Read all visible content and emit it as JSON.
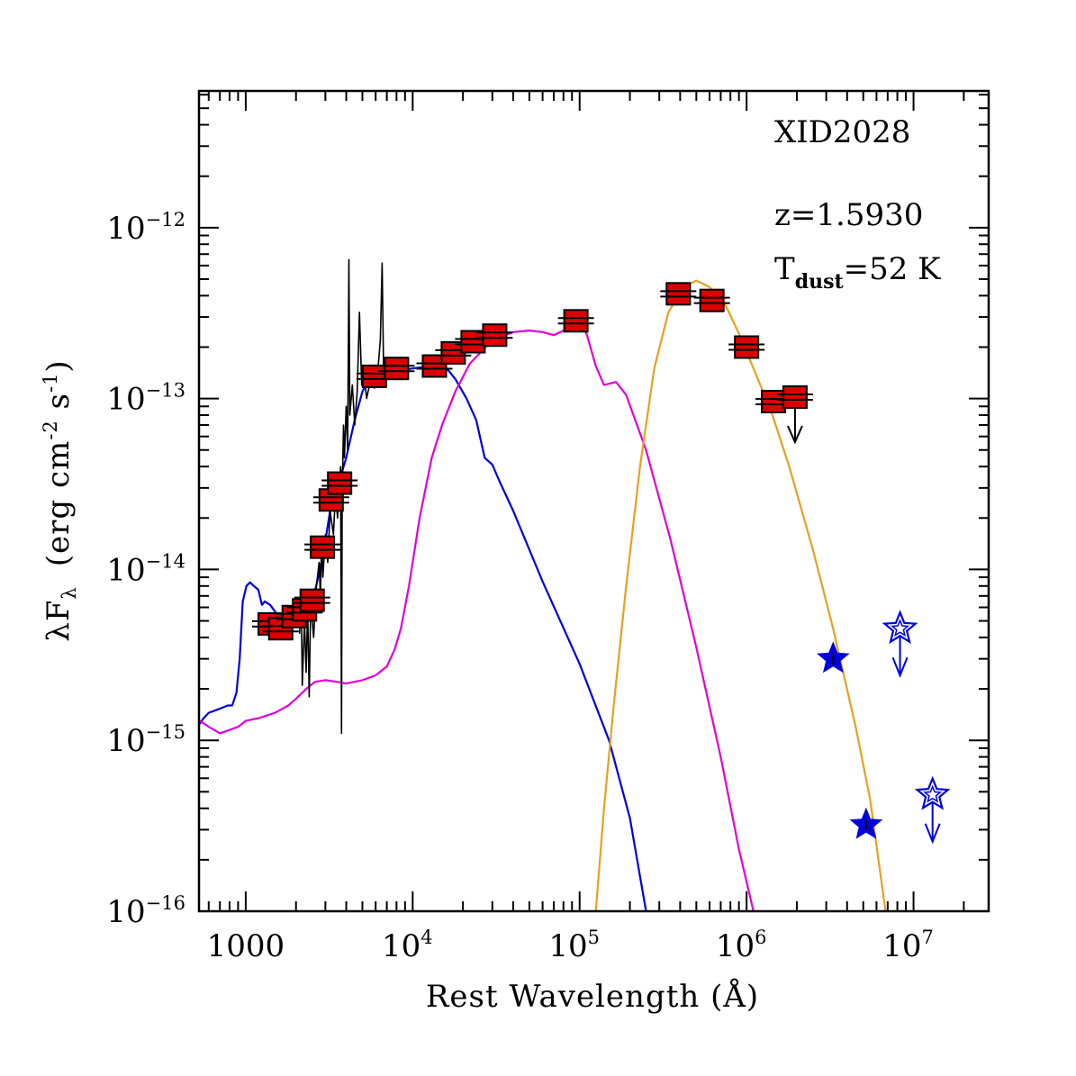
{
  "chart_data": {
    "type": "scatter",
    "title": "",
    "xlabel": "Rest Wavelength (Å)",
    "ylabel_main": "λF",
    "ylabel_sub": "λ",
    "ylabel_units": "(erg cm",
    "ylabel_units_exp1": "-2",
    "ylabel_units_mid": " s",
    "ylabel_units_exp2": "-1",
    "ylabel_units_end": ")",
    "xscale": "log",
    "yscale": "log",
    "xlim_log10": [
      2.72,
      7.45
    ],
    "ylim_log10": [
      -16,
      -11.2
    ],
    "x_ticks": [
      {
        "log": 3,
        "base": "1000",
        "exp": ""
      },
      {
        "log": 4,
        "base": "10",
        "exp": "4"
      },
      {
        "log": 5,
        "base": "10",
        "exp": "5"
      },
      {
        "log": 6,
        "base": "10",
        "exp": "6"
      },
      {
        "log": 7,
        "base": "10",
        "exp": "7"
      }
    ],
    "y_ticks": [
      {
        "log": -12,
        "base": "10",
        "exp": "−12"
      },
      {
        "log": -13,
        "base": "10",
        "exp": "−13"
      },
      {
        "log": -14,
        "base": "10",
        "exp": "−14"
      },
      {
        "log": -15,
        "base": "10",
        "exp": "−15"
      },
      {
        "log": -16,
        "base": "10",
        "exp": "−16"
      }
    ],
    "annotations": {
      "source_id": "XID2028",
      "redshift": "z=1.5930",
      "tdust_prefix": "T",
      "tdust_sub": "dust",
      "tdust_value": "=52 K"
    },
    "colors": {
      "stellar": "#0000dd",
      "torus": "#dd00dd",
      "dust": "#e8a020",
      "spectrum": "#000000",
      "photometry_fill": "#dd0000",
      "radio": "#0000dd"
    },
    "series": [
      {
        "name": "photometry",
        "marker": "square",
        "points": [
          {
            "x": 1400,
            "y": 4.8e-15,
            "upper_limit": false
          },
          {
            "x": 1620,
            "y": 4.5e-15,
            "upper_limit": false
          },
          {
            "x": 1950,
            "y": 5.3e-15,
            "upper_limit": false
          },
          {
            "x": 2250,
            "y": 5.8e-15,
            "upper_limit": false
          },
          {
            "x": 2500,
            "y": 6.6e-15,
            "upper_limit": false
          },
          {
            "x": 2880,
            "y": 1.35e-14,
            "upper_limit": false
          },
          {
            "x": 3250,
            "y": 2.55e-14,
            "upper_limit": false
          },
          {
            "x": 3650,
            "y": 3.2e-14,
            "upper_limit": false
          },
          {
            "x": 5900,
            "y": 1.35e-13,
            "upper_limit": false
          },
          {
            "x": 8000,
            "y": 1.5e-13,
            "upper_limit": false
          },
          {
            "x": 13500,
            "y": 1.55e-13,
            "upper_limit": false
          },
          {
            "x": 17500,
            "y": 1.85e-13,
            "upper_limit": false
          },
          {
            "x": 23000,
            "y": 2.15e-13,
            "upper_limit": false
          },
          {
            "x": 31000,
            "y": 2.35e-13,
            "upper_limit": false
          },
          {
            "x": 95000,
            "y": 2.85e-13,
            "upper_limit": false
          },
          {
            "x": 390000,
            "y": 4.1e-13,
            "upper_limit": false
          },
          {
            "x": 620000,
            "y": 3.75e-13,
            "upper_limit": false
          },
          {
            "x": 1000000,
            "y": 2e-13,
            "upper_limit": false
          },
          {
            "x": 1450000,
            "y": 9.6e-14,
            "upper_limit": false
          },
          {
            "x": 1950000,
            "y": 1.02e-13,
            "upper_limit": true
          }
        ]
      },
      {
        "name": "radio",
        "marker": "star",
        "points": [
          {
            "x": 3300000,
            "y": 3e-15,
            "upper_limit": false
          },
          {
            "x": 5200000,
            "y": 3.2e-16,
            "upper_limit": false
          },
          {
            "x": 8300000,
            "y": 4.5e-15,
            "upper_limit": true
          },
          {
            "x": 13000000,
            "y": 4.8e-16,
            "upper_limit": true
          }
        ]
      },
      {
        "name": "stellar template",
        "line": true,
        "points": [
          [
            530,
            1.25e-15
          ],
          [
            560,
            1.35e-15
          ],
          [
            600,
            1.45e-15
          ],
          [
            660,
            1.5e-15
          ],
          [
            720,
            1.55e-15
          ],
          [
            780,
            1.6e-15
          ],
          [
            830,
            1.6e-15
          ],
          [
            880,
            1.9e-15
          ],
          [
            920,
            3e-15
          ],
          [
            960,
            6.5e-15
          ],
          [
            1010,
            8e-15
          ],
          [
            1060,
            8.4e-15
          ],
          [
            1120,
            8e-15
          ],
          [
            1190,
            7.6e-15
          ],
          [
            1250,
            6.2e-15
          ],
          [
            1300,
            6.5e-15
          ],
          [
            1400,
            6.2e-15
          ],
          [
            1600,
            5.2e-15
          ],
          [
            1800,
            5.5e-15
          ],
          [
            2000,
            6e-15
          ],
          [
            2300,
            6.5e-15
          ],
          [
            2600,
            7.5e-15
          ],
          [
            2900,
            1.2e-14
          ],
          [
            3200,
            2.2e-14
          ],
          [
            3600,
            3.2e-14
          ],
          [
            4000,
            4.5e-14
          ],
          [
            4500,
            7.5e-14
          ],
          [
            5000,
            1.1e-13
          ],
          [
            5500,
            1.3e-13
          ],
          [
            6500,
            1.4e-13
          ],
          [
            8000,
            1.45e-13
          ],
          [
            10000,
            1.5e-13
          ],
          [
            13000,
            1.55e-13
          ],
          [
            16000,
            1.5e-13
          ],
          [
            18000,
            1.3e-13
          ],
          [
            21000,
            1e-13
          ],
          [
            24000,
            7.5e-14
          ],
          [
            27000,
            4.5e-14
          ],
          [
            30000,
            4.1e-14
          ],
          [
            33000,
            3.3e-14
          ],
          [
            40000,
            2.2e-14
          ],
          [
            60000,
            8.5e-15
          ],
          [
            100000,
            2.8e-15
          ],
          [
            150000,
            1e-15
          ],
          [
            200000,
            3.5e-16
          ],
          [
            250000,
            1e-16
          ]
        ]
      },
      {
        "name": "torus template",
        "line": true,
        "points": [
          [
            530,
            1.3e-15
          ],
          [
            600,
            1.2e-15
          ],
          [
            700,
            1.1e-15
          ],
          [
            800,
            1.15e-15
          ],
          [
            900,
            1.2e-15
          ],
          [
            1000,
            1.3e-15
          ],
          [
            1200,
            1.35e-15
          ],
          [
            1500,
            1.45e-15
          ],
          [
            1800,
            1.6e-15
          ],
          [
            2000,
            1.75e-15
          ],
          [
            2300,
            2e-15
          ],
          [
            2600,
            2.2e-15
          ],
          [
            3000,
            2.25e-15
          ],
          [
            3500,
            2.2e-15
          ],
          [
            4000,
            2.15e-15
          ],
          [
            5000,
            2.25e-15
          ],
          [
            6000,
            2.4e-15
          ],
          [
            7000,
            2.7e-15
          ],
          [
            7800,
            3.4e-15
          ],
          [
            8500,
            4.5e-15
          ],
          [
            9500,
            8e-15
          ],
          [
            11000,
            2e-14
          ],
          [
            13000,
            4.5e-14
          ],
          [
            15000,
            7e-14
          ],
          [
            18000,
            1.1e-13
          ],
          [
            22000,
            1.6e-13
          ],
          [
            30000,
            2.2e-13
          ],
          [
            40000,
            2.45e-13
          ],
          [
            50000,
            2.5e-13
          ],
          [
            60000,
            2.45e-13
          ],
          [
            70000,
            2.35e-13
          ],
          [
            80000,
            2.5e-13
          ],
          [
            90000,
            2.75e-13
          ],
          [
            100000,
            2.8e-13
          ],
          [
            110000,
            2.4e-13
          ],
          [
            125000,
            1.55e-13
          ],
          [
            140000,
            1.2e-13
          ],
          [
            165000,
            1.25e-13
          ],
          [
            190000,
            1.05e-13
          ],
          [
            250000,
            5e-14
          ],
          [
            350000,
            1.5e-14
          ],
          [
            500000,
            3.5e-15
          ],
          [
            700000,
            8e-16
          ],
          [
            900000,
            2.3e-16
          ],
          [
            1100000,
            1e-16
          ]
        ]
      },
      {
        "name": "dust greybody",
        "line": true,
        "points": [
          [
            125000,
            1e-16
          ],
          [
            140000,
            4e-16
          ],
          [
            160000,
            1.6e-15
          ],
          [
            190000,
            8e-15
          ],
          [
            230000,
            4e-14
          ],
          [
            280000,
            1.5e-13
          ],
          [
            340000,
            3.2e-13
          ],
          [
            420000,
            4.5e-13
          ],
          [
            500000,
            4.9e-13
          ],
          [
            600000,
            4.5e-13
          ],
          [
            750000,
            3.5e-13
          ],
          [
            900000,
            2.4e-13
          ],
          [
            1100000,
            1.5e-13
          ],
          [
            1400000,
            8.5e-14
          ],
          [
            1800000,
            4e-14
          ],
          [
            2500000,
            1.3e-14
          ],
          [
            3300000,
            4.5e-15
          ],
          [
            4500000,
            1.2e-15
          ],
          [
            5500000,
            4.5e-16
          ],
          [
            6800000,
            1e-16
          ]
        ]
      },
      {
        "name": "observed spectrum",
        "line": true,
        "points": [
          [
            2100,
            4.2e-15
          ],
          [
            2150,
            7e-15
          ],
          [
            2180,
            2.1e-15
          ],
          [
            2250,
            5e-15
          ],
          [
            2300,
            2.5e-15
          ],
          [
            2350,
            6e-15
          ],
          [
            2400,
            1.8e-15
          ],
          [
            2450,
            6.5e-15
          ],
          [
            2550,
            4e-15
          ],
          [
            2650,
            8e-15
          ],
          [
            2750,
            1.1e-14
          ],
          [
            2800,
            7e-15
          ],
          [
            2850,
            1.4e-14
          ],
          [
            2900,
            9e-15
          ],
          [
            3000,
            1.6e-14
          ],
          [
            3100,
            1.1e-14
          ],
          [
            3200,
            2.2e-14
          ],
          [
            3350,
            1.6e-14
          ],
          [
            3450,
            2.8e-14
          ],
          [
            3550,
            2e-14
          ],
          [
            3700,
            4e-14
          ],
          [
            3750,
            1.1e-15
          ],
          [
            3780,
            2.7e-14
          ],
          [
            3850,
            7e-14
          ],
          [
            3900,
            4.5e-14
          ],
          [
            4000,
            9e-14
          ],
          [
            4080,
            5e-14
          ],
          [
            4150,
            6.5e-13
          ],
          [
            4200,
            8e-14
          ],
          [
            4350,
            1.2e-13
          ],
          [
            4500,
            7e-14
          ],
          [
            4650,
            1.1e-13
          ],
          [
            4800,
            3.2e-13
          ],
          [
            4950,
            1.2e-13
          ],
          [
            5100,
            1.4e-13
          ],
          [
            5300,
            1e-13
          ],
          [
            5600,
            1.3e-13
          ],
          [
            5900,
            1.15e-13
          ],
          [
            6200,
            1.5e-13
          ],
          [
            6400,
            2.2e-13
          ],
          [
            6560,
            6.2e-13
          ],
          [
            6700,
            1.35e-13
          ],
          [
            7000,
            1.45e-13
          ]
        ]
      }
    ]
  }
}
